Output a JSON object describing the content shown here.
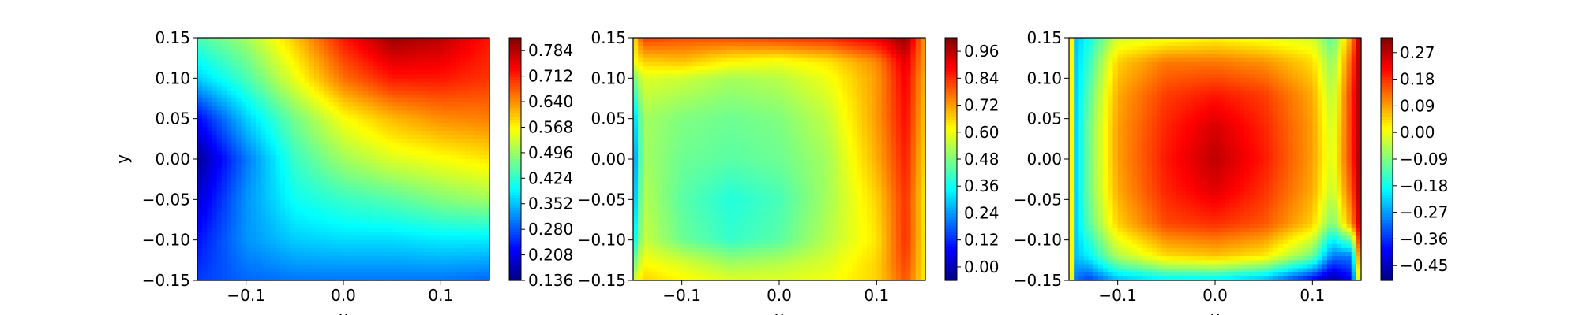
{
  "chart_data": [
    {
      "type": "heatmap",
      "xlabel": "x",
      "ylabel": "y",
      "xlim": [
        -0.15,
        0.15
      ],
      "ylim": [
        -0.15,
        0.15
      ],
      "x_ticks": [
        "−0.1",
        "0.0",
        "0.1"
      ],
      "x_tick_values": [
        -0.1,
        0.0,
        0.1
      ],
      "y_ticks": [
        "−0.15",
        "−0.10",
        "−0.05",
        "0.00",
        "0.05",
        "0.10",
        "0.15"
      ],
      "y_tick_values": [
        -0.15,
        -0.1,
        -0.05,
        0.0,
        0.05,
        0.1,
        0.15
      ],
      "colorbar": {
        "colormap": "jet",
        "range": [
          0.136,
          0.82
        ],
        "ticks": [
          "0.136",
          "0.208",
          "0.280",
          "0.352",
          "0.424",
          "0.496",
          "0.568",
          "0.640",
          "0.712",
          "0.784"
        ],
        "tick_values": [
          0.136,
          0.208,
          0.28,
          0.352,
          0.424,
          0.496,
          0.568,
          0.64,
          0.712,
          0.784
        ]
      },
      "field": {
        "grid_x": [
          -0.15,
          -0.1,
          -0.05,
          0.0,
          0.05,
          0.1,
          0.15
        ],
        "grid_y": [
          0.15,
          0.1,
          0.05,
          0.0,
          -0.05,
          -0.1,
          -0.15
        ],
        "values": [
          [
            0.44,
            0.5,
            0.6,
            0.72,
            0.8,
            0.78,
            0.72
          ],
          [
            0.36,
            0.44,
            0.55,
            0.66,
            0.72,
            0.72,
            0.7
          ],
          [
            0.22,
            0.36,
            0.47,
            0.56,
            0.61,
            0.64,
            0.65
          ],
          [
            0.15,
            0.3,
            0.43,
            0.5,
            0.54,
            0.56,
            0.58
          ],
          [
            0.19,
            0.32,
            0.4,
            0.43,
            0.45,
            0.48,
            0.5
          ],
          [
            0.23,
            0.32,
            0.36,
            0.37,
            0.37,
            0.38,
            0.38
          ],
          [
            0.26,
            0.29,
            0.3,
            0.3,
            0.3,
            0.3,
            0.29
          ]
        ]
      }
    },
    {
      "type": "heatmap",
      "xlabel": "x",
      "ylabel": "",
      "xlim": [
        -0.15,
        0.15
      ],
      "ylim": [
        -0.15,
        0.15
      ],
      "x_ticks": [
        "−0.1",
        "0.0",
        "0.1"
      ],
      "x_tick_values": [
        -0.1,
        0.0,
        0.1
      ],
      "y_ticks": [
        "−0.15",
        "−0.10",
        "−0.05",
        "0.00",
        "0.05",
        "0.10",
        "0.15"
      ],
      "y_tick_values": [
        -0.15,
        -0.1,
        -0.05,
        0.0,
        0.05,
        0.1,
        0.15
      ],
      "colorbar": {
        "colormap": "jet",
        "range": [
          -0.06,
          1.02
        ],
        "ticks": [
          "0.00",
          "0.12",
          "0.24",
          "0.36",
          "0.48",
          "0.60",
          "0.72",
          "0.84",
          "0.96"
        ],
        "tick_values": [
          0.0,
          0.12,
          0.24,
          0.36,
          0.48,
          0.6,
          0.72,
          0.84,
          0.96
        ]
      },
      "field": {
        "grid_x": [
          -0.15,
          -0.14,
          -0.1,
          -0.05,
          0.0,
          0.05,
          0.1,
          0.13,
          0.15
        ],
        "grid_y": [
          0.15,
          0.12,
          0.1,
          0.05,
          0.0,
          -0.05,
          -0.1,
          -0.13,
          -0.15
        ],
        "values": [
          [
            0.62,
            0.82,
            0.8,
            0.8,
            0.82,
            0.84,
            0.9,
            1.0,
            0.7
          ],
          [
            0.6,
            0.66,
            0.68,
            0.62,
            0.6,
            0.64,
            0.74,
            0.92,
            0.7
          ],
          [
            0.45,
            0.58,
            0.56,
            0.52,
            0.54,
            0.6,
            0.72,
            0.9,
            0.68
          ],
          [
            0.25,
            0.52,
            0.48,
            0.46,
            0.48,
            0.55,
            0.72,
            0.88,
            0.66
          ],
          [
            0.18,
            0.52,
            0.46,
            0.44,
            0.46,
            0.52,
            0.7,
            0.86,
            0.64
          ],
          [
            0.22,
            0.54,
            0.44,
            0.38,
            0.42,
            0.52,
            0.66,
            0.84,
            0.62
          ],
          [
            0.3,
            0.56,
            0.46,
            0.4,
            0.44,
            0.54,
            0.64,
            0.84,
            0.62
          ],
          [
            0.45,
            0.62,
            0.58,
            0.52,
            0.54,
            0.58,
            0.66,
            0.82,
            0.62
          ],
          [
            0.55,
            0.66,
            0.62,
            0.58,
            0.58,
            0.6,
            0.66,
            0.8,
            0.62
          ]
        ]
      }
    },
    {
      "type": "heatmap",
      "xlabel": "x",
      "ylabel": "",
      "xlim": [
        -0.15,
        0.15
      ],
      "ylim": [
        -0.15,
        0.15
      ],
      "x_ticks": [
        "−0.1",
        "0.0",
        "0.1"
      ],
      "x_tick_values": [
        -0.1,
        0.0,
        0.1
      ],
      "y_ticks": [
        "−0.15",
        "−0.10",
        "−0.05",
        "0.00",
        "0.05",
        "0.10",
        "0.15"
      ],
      "y_tick_values": [
        -0.15,
        -0.1,
        -0.05,
        0.0,
        0.05,
        0.1,
        0.15
      ],
      "colorbar": {
        "colormap": "jet",
        "range": [
          -0.5,
          0.32
        ],
        "ticks": [
          "−0.45",
          "−0.36",
          "−0.27",
          "−0.18",
          "−0.09",
          "0.00",
          "0.09",
          "0.18",
          "0.27"
        ],
        "tick_values": [
          -0.45,
          -0.36,
          -0.27,
          -0.18,
          -0.09,
          0.0,
          0.09,
          0.18,
          0.27
        ]
      },
      "field": {
        "grid_x": [
          -0.15,
          -0.145,
          -0.13,
          -0.1,
          -0.05,
          0.0,
          0.05,
          0.1,
          0.12,
          0.14,
          0.15
        ],
        "grid_y": [
          0.15,
          0.12,
          0.08,
          0.04,
          0.0,
          -0.04,
          -0.08,
          -0.12,
          -0.15
        ],
        "values": [
          [
            0.28,
            -0.25,
            -0.18,
            -0.02,
            0.0,
            0.02,
            0.0,
            -0.02,
            -0.12,
            0.1,
            0.3
          ],
          [
            0.28,
            -0.25,
            -0.15,
            0.05,
            0.12,
            0.12,
            0.1,
            0.04,
            -0.08,
            0.15,
            0.3
          ],
          [
            0.28,
            -0.25,
            -0.12,
            0.08,
            0.17,
            0.2,
            0.17,
            0.08,
            -0.05,
            0.18,
            0.3
          ],
          [
            0.28,
            -0.25,
            -0.1,
            0.09,
            0.19,
            0.25,
            0.19,
            0.09,
            -0.03,
            0.18,
            0.3
          ],
          [
            0.28,
            -0.25,
            -0.1,
            0.09,
            0.2,
            0.27,
            0.2,
            0.09,
            -0.02,
            0.18,
            0.3
          ],
          [
            0.28,
            -0.25,
            -0.1,
            0.08,
            0.19,
            0.24,
            0.18,
            0.08,
            -0.04,
            0.15,
            0.3
          ],
          [
            0.28,
            -0.25,
            -0.12,
            0.05,
            0.16,
            0.18,
            0.15,
            0.05,
            -0.1,
            0.1,
            0.28
          ],
          [
            0.28,
            -0.25,
            -0.2,
            -0.05,
            0.04,
            0.06,
            0.03,
            -0.1,
            -0.3,
            -0.3,
            0.2
          ],
          [
            0.28,
            -0.3,
            -0.35,
            -0.25,
            -0.2,
            -0.2,
            -0.25,
            -0.4,
            -0.48,
            -0.4,
            0.1
          ]
        ]
      }
    }
  ]
}
